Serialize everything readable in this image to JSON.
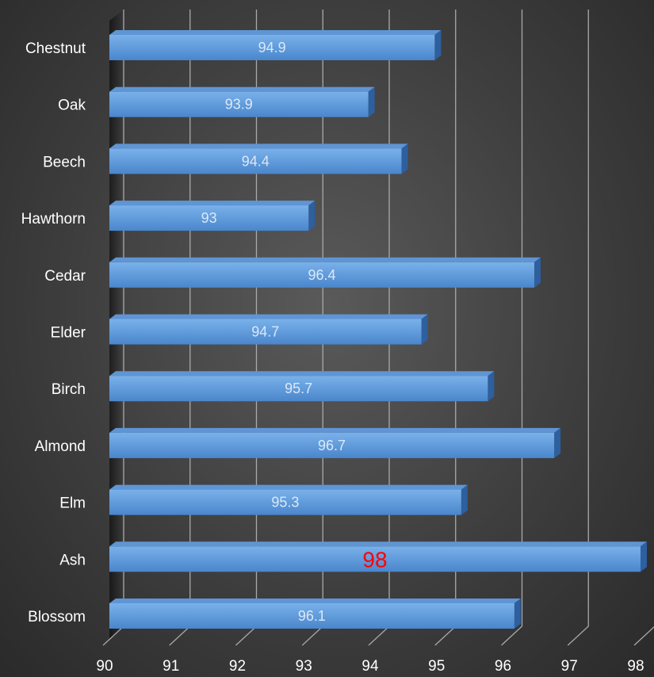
{
  "chart_data": {
    "type": "bar",
    "orientation": "horizontal",
    "three_d": true,
    "categories": [
      "Chestnut",
      "Oak",
      "Beech",
      "Hawthorn",
      "Cedar",
      "Elder",
      "Birch",
      "Almond",
      "Elm",
      "Ash",
      "Blossom"
    ],
    "values": [
      94.9,
      93.9,
      94.4,
      93,
      96.4,
      94.7,
      95.7,
      96.7,
      95.3,
      98,
      96.1
    ],
    "xlim": [
      90,
      98
    ],
    "xticks": [
      "90",
      "91",
      "92",
      "93",
      "94",
      "95",
      "96",
      "97",
      "98"
    ],
    "grid": true,
    "legend": "none",
    "highlight": {
      "category": "Ash",
      "label_color": "#ff0000"
    },
    "colors": {
      "bar_front_top": "#79b1ea",
      "bar_front_bottom": "#4a86cc",
      "bar_top": "#5f95d4",
      "bar_side": "#2e5f9e",
      "grid": "#a9a9a9",
      "text": "#ffffff",
      "data_label": "#dbe8f7",
      "highlight_label": "#ff0000"
    }
  }
}
